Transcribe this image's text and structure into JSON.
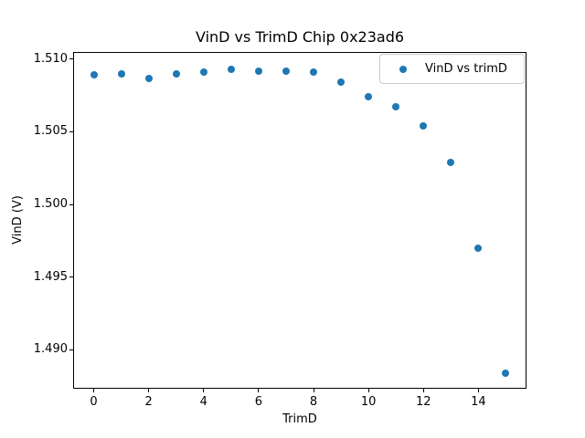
{
  "chart_data": {
    "type": "scatter",
    "title": "VinD vs TrimD Chip 0x23ad6",
    "xlabel": "TrimD",
    "ylabel": "VinD (V)",
    "grid": false,
    "legend_position": "upper right",
    "xlim": [
      -0.75,
      15.75
    ],
    "ylim": [
      1.4873,
      1.5105
    ],
    "x_ticks": {
      "values": [
        0,
        2,
        4,
        6,
        8,
        10,
        12,
        14
      ],
      "labels": [
        "0",
        "2",
        "4",
        "6",
        "8",
        "10",
        "12",
        "14"
      ]
    },
    "y_ticks": {
      "values": [
        1.51,
        1.505,
        1.5,
        1.495,
        1.49
      ],
      "labels": [
        "1.510",
        "1.505",
        "1.500",
        "1.495",
        "1.490"
      ]
    },
    "series": [
      {
        "name": "VinD vs trimD",
        "marker": "circle",
        "color": "#1f77b4",
        "x": [
          0,
          1,
          2,
          3,
          4,
          5,
          6,
          7,
          8,
          9,
          10,
          11,
          12,
          13,
          14,
          15
        ],
        "y": [
          1.5089,
          1.509,
          1.5087,
          1.509,
          1.5091,
          1.5093,
          1.5092,
          1.5092,
          1.5091,
          1.5084,
          1.5074,
          1.5067,
          1.5054,
          1.5029,
          1.497,
          1.4884
        ]
      }
    ],
    "colors": {
      "marker": "#1f77b4",
      "legend_border": "#cccccc",
      "spines": "#000000",
      "background": "#ffffff",
      "text": "#000000"
    }
  }
}
